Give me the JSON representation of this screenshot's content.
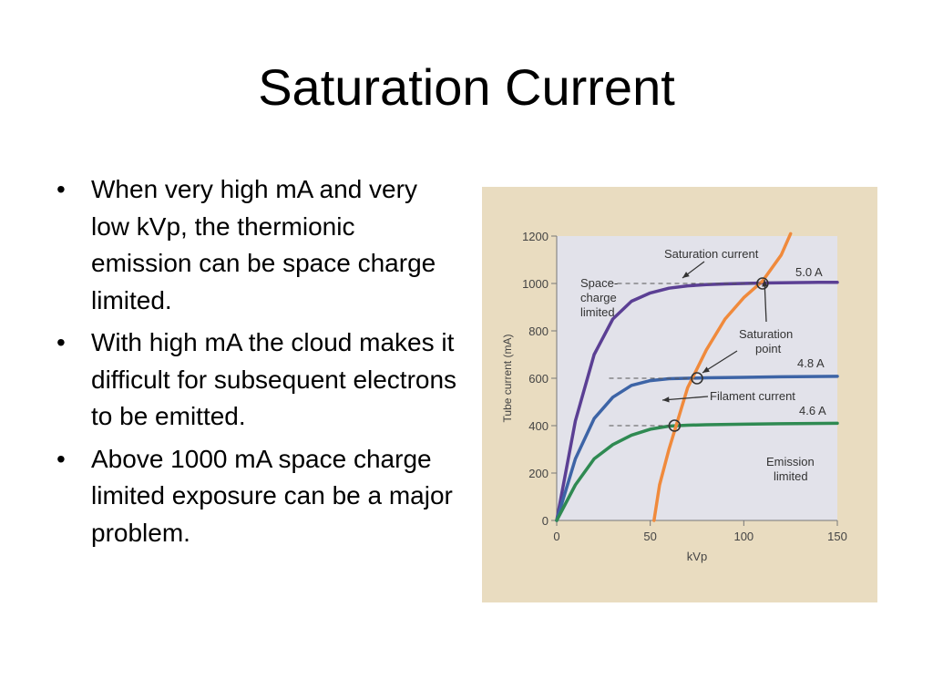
{
  "slide": {
    "title": "Saturation Current",
    "bullets": [
      "When very high mA and very low kVp, the thermionic emission  can be space charge limited.",
      "With high mA the cloud makes it difficult for subsequent electrons to be emitted.",
      "Above 1000 mA space charge limited exposure can be a major problem."
    ],
    "bullet_glyph": "•"
  },
  "colors": {
    "paper": "#e9dcc0",
    "plot_bg": "#e2e2ea",
    "curve_5a": "#5b3f94",
    "curve_48a": "#3d64a6",
    "curve_46a": "#2f8a52",
    "saturation_curve": "#f08a3c"
  },
  "chart_data": {
    "type": "line",
    "xlabel": "kVp",
    "ylabel": "Tube current (mA)",
    "xlim": [
      0,
      150
    ],
    "ylim": [
      0,
      1200
    ],
    "xticks": [
      "0",
      "50",
      "100",
      "150"
    ],
    "yticks": [
      "0",
      "200",
      "400",
      "600",
      "800",
      "1000",
      "1200"
    ],
    "series": [
      {
        "name": "5.0 A",
        "x": [
          0,
          10,
          20,
          30,
          40,
          50,
          60,
          70,
          80,
          90,
          100,
          110,
          120,
          130,
          140,
          150
        ],
        "values": [
          0,
          420,
          700,
          850,
          925,
          960,
          980,
          990,
          995,
          998,
          1000,
          1002,
          1003,
          1004,
          1005,
          1005
        ]
      },
      {
        "name": "4.8 A",
        "x": [
          0,
          10,
          20,
          30,
          40,
          50,
          60,
          70,
          80,
          100,
          120,
          150
        ],
        "values": [
          0,
          260,
          430,
          520,
          570,
          590,
          598,
          600,
          602,
          604,
          606,
          608
        ]
      },
      {
        "name": "4.6 A",
        "x": [
          0,
          10,
          20,
          30,
          40,
          50,
          60,
          70,
          80,
          100,
          120,
          150
        ],
        "values": [
          0,
          150,
          260,
          320,
          360,
          385,
          398,
          402,
          404,
          406,
          408,
          410
        ]
      },
      {
        "name": "Saturation current",
        "x": [
          52,
          55,
          60,
          70,
          80,
          90,
          100,
          110,
          120,
          125
        ],
        "values": [
          0,
          150,
          300,
          560,
          720,
          850,
          940,
          1010,
          1120,
          1210
        ]
      }
    ],
    "saturation_points": [
      {
        "x": 63,
        "y": 400
      },
      {
        "x": 75,
        "y": 600
      },
      {
        "x": 110,
        "y": 1000
      }
    ],
    "annotations": {
      "saturation_current": "Saturation current",
      "label_5a": "5.0 A",
      "label_48a": "4.8 A",
      "label_46a": "4.6 A",
      "space_charge_1": "Space-",
      "space_charge_2": "charge",
      "space_charge_3": "limited",
      "saturation_point_1": "Saturation",
      "saturation_point_2": "point",
      "filament_current": "Filament current",
      "emission_1": "Emission",
      "emission_2": "limited"
    }
  }
}
